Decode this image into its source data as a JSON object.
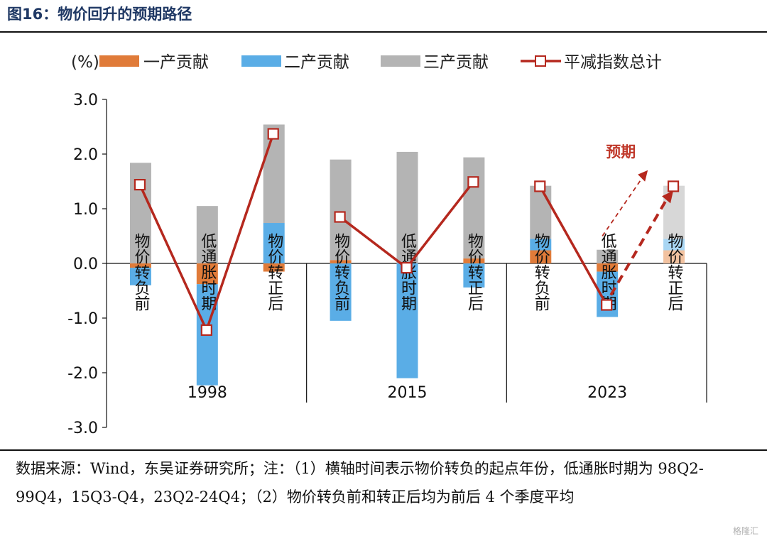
{
  "header": {
    "title": "图16：物价回升的预期路径"
  },
  "footer": {
    "note": "数据来源：Wind，东吴证券研究所；注：（1）横轴时间表示物价转负的起点年份，低通胀时期为 98Q2-99Q4，15Q3-Q4，23Q2-24Q4；（2）物价转负前和转正后均为前后 4 个季度平均"
  },
  "watermark": {
    "text": "格隆汇"
  },
  "colors": {
    "primary": "#e07b39",
    "secondary": "#5aade6",
    "tertiary": "#b4b4b4",
    "deflator": "#b5281e",
    "primary_proj": "#f2c2a0",
    "secondary_proj": "#a9d6f3",
    "tertiary_proj": "#d7d7d7"
  },
  "chart_data": {
    "type": "bar",
    "unit_label": "(%)",
    "ylim": [
      -3.0,
      3.0
    ],
    "y_ticks": [
      "3.0",
      "2.0",
      "1.0",
      "0.0",
      "-1.0",
      "-2.0",
      "-3.0"
    ],
    "categories": [
      "物价转负前",
      "低通胀时期",
      "物价转正后",
      "物价转负前",
      "低通胀时期",
      "物价转正后",
      "物价转负前",
      "低通胀时期",
      "物价转正后"
    ],
    "groups": [
      "1998",
      "2015",
      "2023"
    ],
    "series": [
      {
        "name": "一产贡献",
        "type": "bar",
        "values": [
          -0.08,
          -0.38,
          -0.15,
          0.06,
          0.0,
          0.09,
          0.24,
          -0.15,
          0.24
        ]
      },
      {
        "name": "二产贡献",
        "type": "bar",
        "values": [
          -0.32,
          -1.85,
          0.74,
          -1.05,
          -2.1,
          -0.44,
          0.21,
          -0.83,
          0.21
        ]
      },
      {
        "name": "三产贡献",
        "type": "bar",
        "values": [
          1.84,
          1.05,
          1.8,
          1.84,
          2.04,
          1.85,
          0.97,
          0.25,
          0.97
        ]
      },
      {
        "name": "平减指数总计",
        "type": "line",
        "values": [
          1.44,
          -1.22,
          2.37,
          0.85,
          -0.08,
          1.49,
          1.41,
          -0.76,
          1.41
        ]
      }
    ],
    "projected_index": 8,
    "annotation": "预期",
    "legend_position": "top",
    "grid": false
  }
}
